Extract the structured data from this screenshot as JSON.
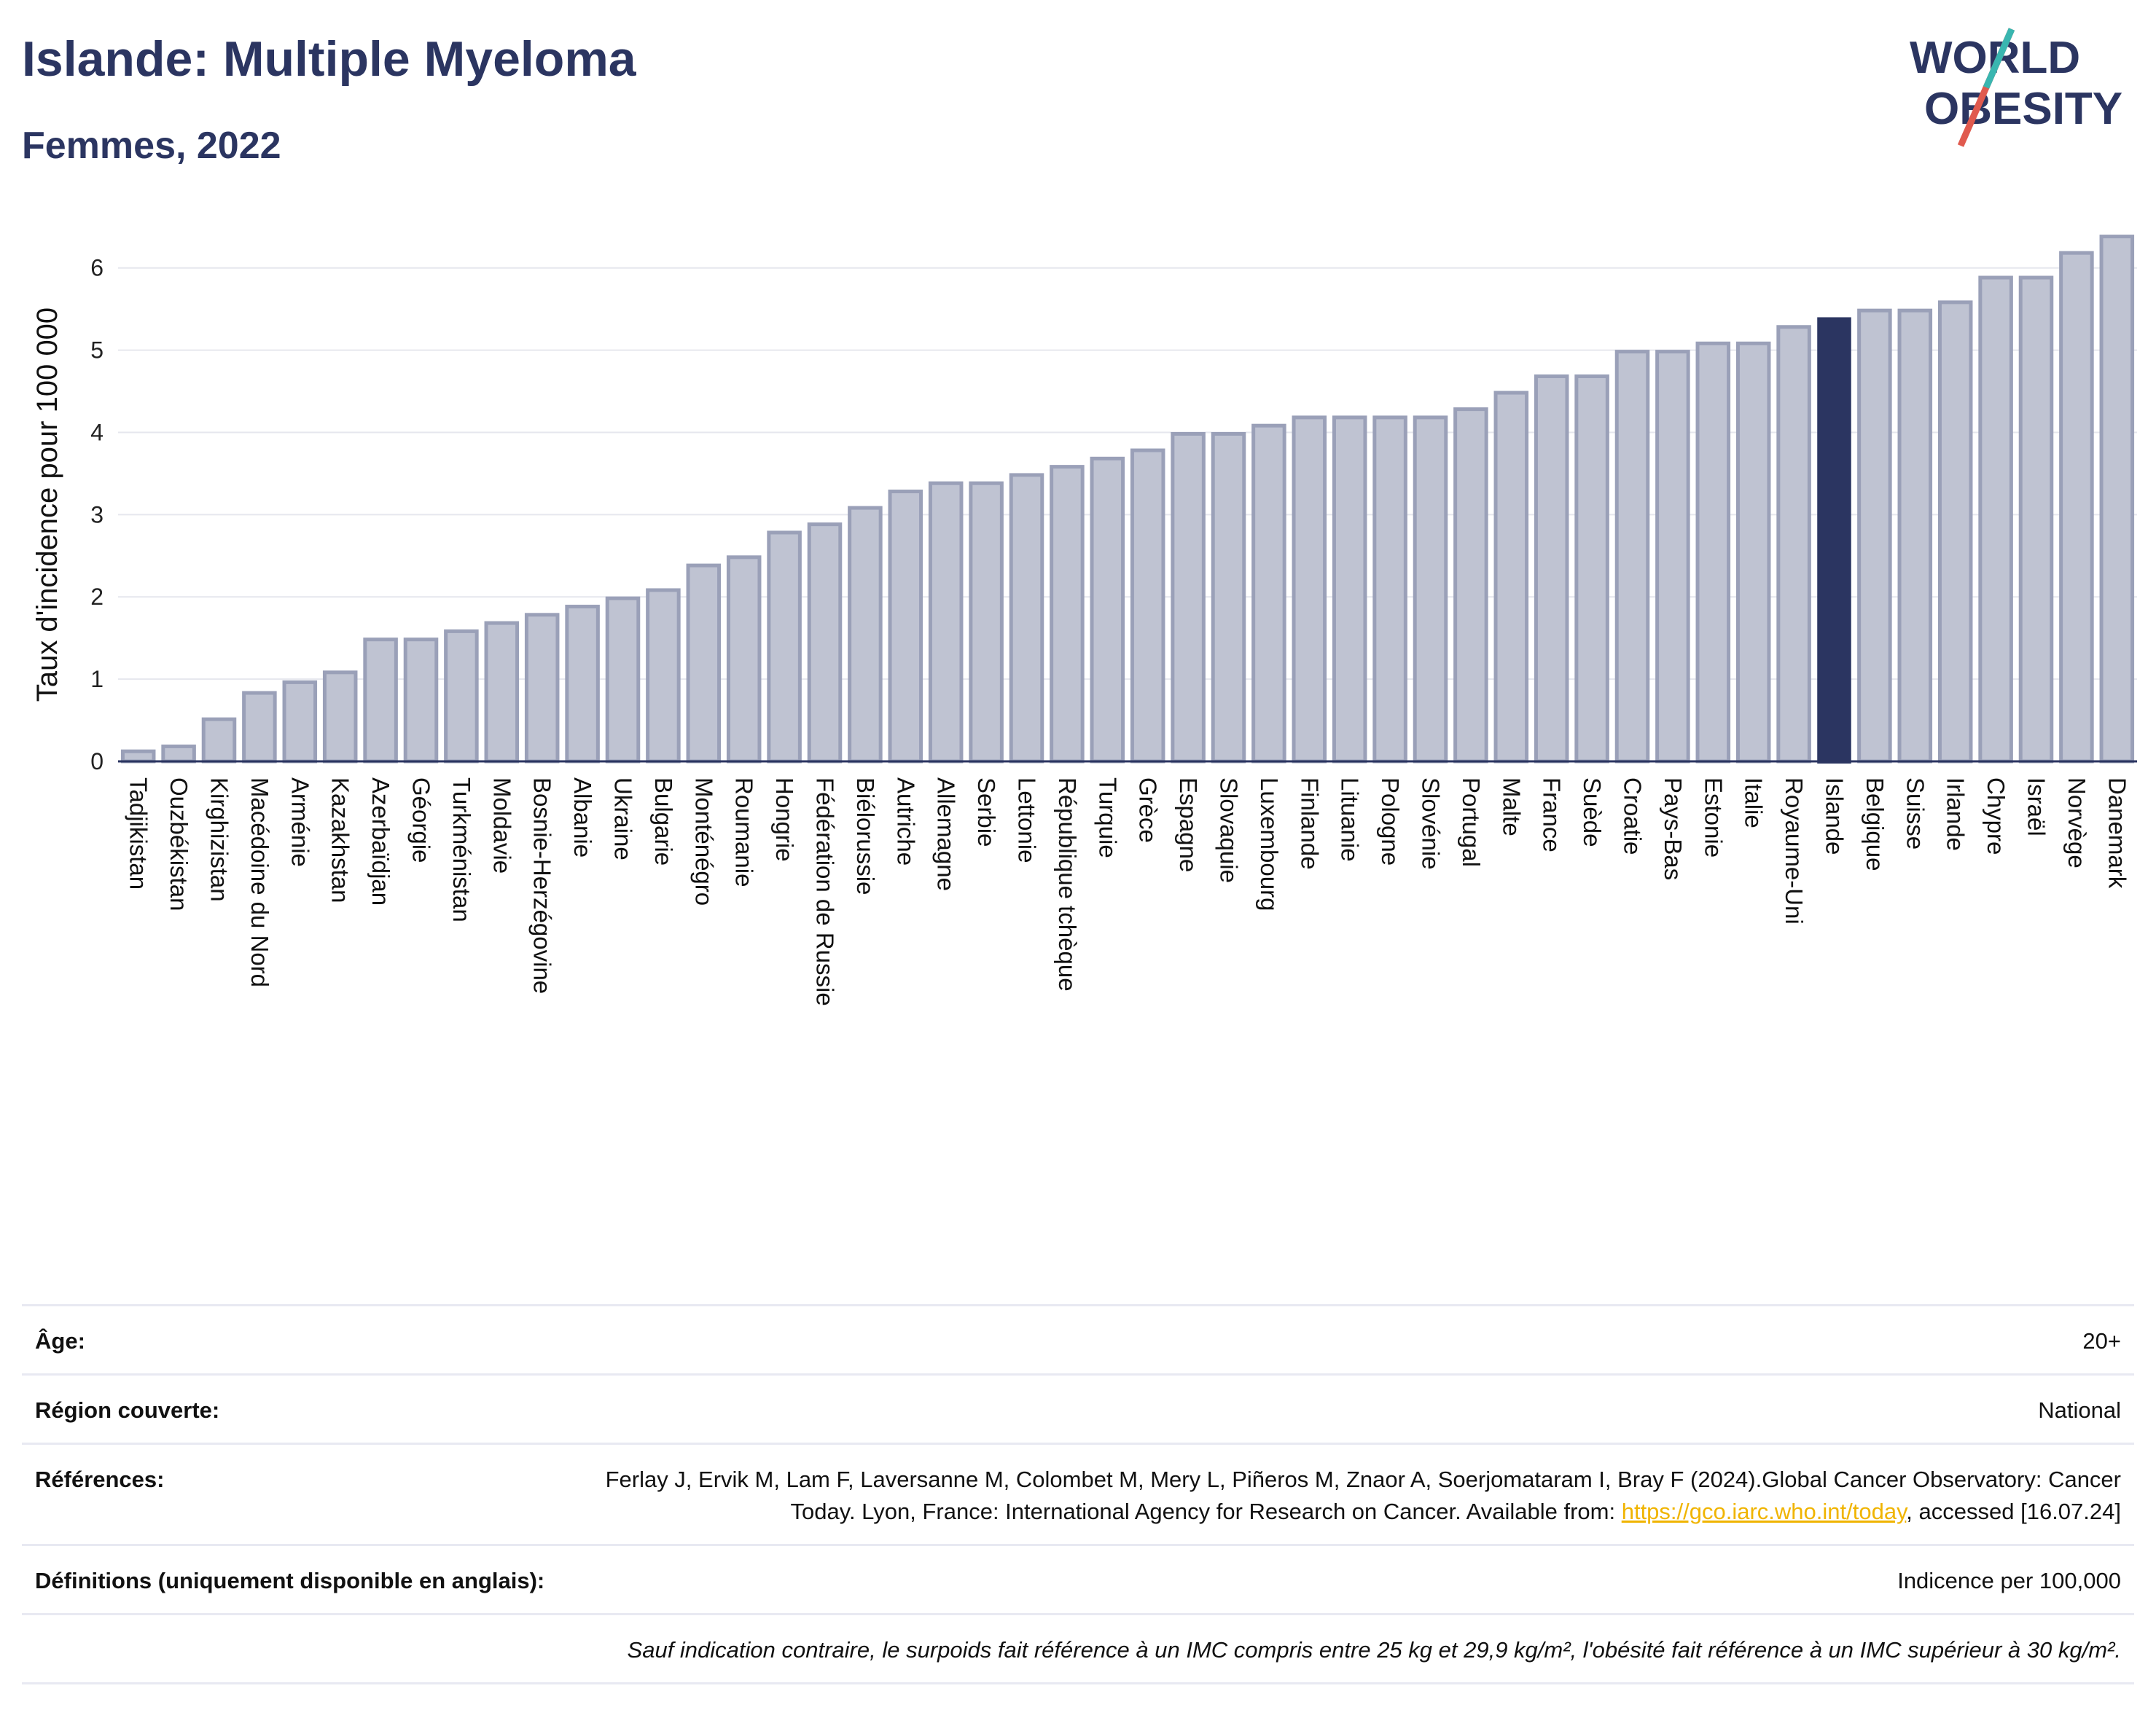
{
  "header": {
    "title": "Islande: Multiple Myeloma",
    "subtitle": "Femmes, 2022"
  },
  "logo": {
    "line1": "WORLD",
    "line2": "OBESITY"
  },
  "chart_data": {
    "type": "bar",
    "title": "Islande: Multiple Myeloma",
    "subtitle": "Femmes, 2022",
    "ylabel": "Taux d'incidence pour 100 000",
    "xlabel": "",
    "ylim": [
      0,
      6.6
    ],
    "yticks": [
      0,
      1,
      2,
      3,
      4,
      5,
      6
    ],
    "grid": true,
    "highlight": "Islande",
    "colors": {
      "bar": "#bfc3d2",
      "bar_edge": "#9aa0b8",
      "highlight": "#2b3561",
      "grid": "#e6e7ee"
    },
    "categories": [
      "Tadjikistan",
      "Ouzbékistan",
      "Kirghizistan",
      "Macédoine du Nord",
      "Arménie",
      "Kazakhstan",
      "Azerbaïdjan",
      "Géorgie",
      "Turkménistan",
      "Moldavie",
      "Bosnie-Herzégovine",
      "Albanie",
      "Ukraine",
      "Bulgarie",
      "Monténégro",
      "Roumanie",
      "Hongrie",
      "Fédération de Russie",
      "Biélorussie",
      "Autriche",
      "Allemagne",
      "Serbie",
      "Lettonie",
      "République tchèque",
      "Turquie",
      "Grèce",
      "Espagne",
      "Slovaquie",
      "Luxembourg",
      "Finlande",
      "Lituanie",
      "Pologne",
      "Slovénie",
      "Portugal",
      "Malte",
      "France",
      "Suède",
      "Croatie",
      "Pays-Bas",
      "Estonie",
      "Italie",
      "Royaume-Uni",
      "Islande",
      "Belgique",
      "Suisse",
      "Irlande",
      "Chypre",
      "Israël",
      "Norvège",
      "Danemark"
    ],
    "values": [
      0.14,
      0.2,
      0.53,
      0.85,
      0.98,
      1.1,
      1.5,
      1.5,
      1.6,
      1.7,
      1.8,
      1.9,
      2.0,
      2.1,
      2.4,
      2.5,
      2.8,
      2.9,
      3.1,
      3.3,
      3.4,
      3.4,
      3.5,
      3.6,
      3.7,
      3.8,
      4.0,
      4.0,
      4.1,
      4.2,
      4.2,
      4.2,
      4.2,
      4.3,
      4.5,
      4.7,
      4.7,
      5.0,
      5.0,
      5.1,
      5.1,
      5.3,
      5.4,
      5.5,
      5.5,
      5.6,
      5.9,
      5.9,
      6.2,
      6.4
    ]
  },
  "info": {
    "age_label": "Âge:",
    "age_value": "20+",
    "region_label": "Région couverte:",
    "region_value": "National",
    "ref_label": "Références:",
    "ref_text": "Ferlay J, Ervik M, Lam F, Laversanne M, Colombet M, Mery L, Piñeros M, Znaor A, Soerjomataram I, Bray F (2024).Global Cancer Observatory: Cancer Today. Lyon, France: International Agency for Research on Cancer. Available from: ",
    "ref_link": "https://gco.iarc.who.int/today",
    "ref_tail": ", accessed [16.07.24]",
    "def_label": "Définitions (uniquement disponible en anglais):",
    "def_value": "Indicence per 100,000",
    "footnote": "Sauf indication contraire, le surpoids fait référence à un IMC compris entre 25 kg et 29,9 kg/m², l'obésité fait référence à un IMC supérieur à 30 kg/m²."
  }
}
